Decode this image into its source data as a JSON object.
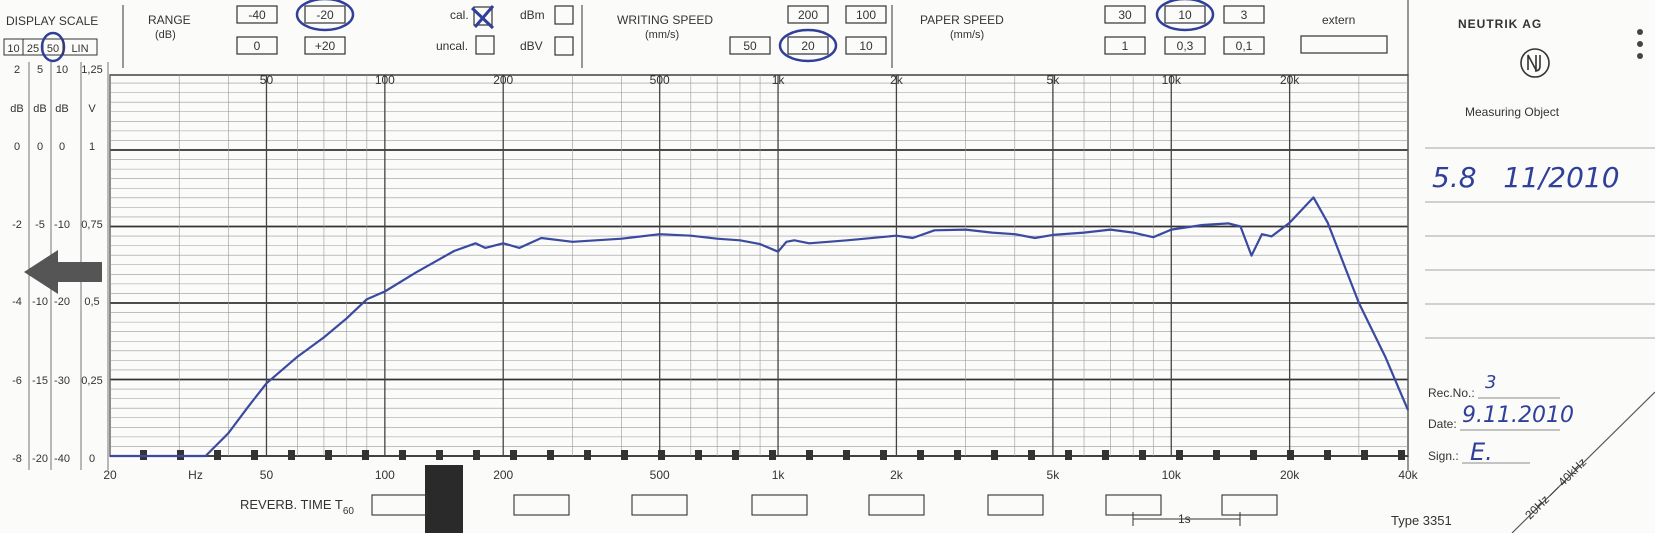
{
  "header": {
    "display_scale": {
      "label": "DISPLAY SCALE",
      "options": [
        "10",
        "25",
        "50",
        "LIN"
      ],
      "selected": "50"
    },
    "range": {
      "label": "RANGE",
      "unit": "(dB)",
      "options_top": [
        "-40",
        "-20"
      ],
      "options_bottom": [
        "0",
        "+20"
      ],
      "selected": "-20",
      "cal_label": "cal.",
      "cal_checked": true,
      "uncal_label": "uncal.",
      "dbm_label": "dBm",
      "dbv_label": "dBV"
    },
    "writing_speed": {
      "label": "WRITING SPEED",
      "unit": "(mm/s)",
      "options_top": [
        "200",
        "100"
      ],
      "options_bottom": [
        "50",
        "20",
        "10"
      ],
      "selected": "20"
    },
    "paper_speed": {
      "label": "PAPER SPEED",
      "unit": "(mm/s)",
      "options_top": [
        "30",
        "10",
        "3"
      ],
      "options_bottom": [
        "1",
        "0,3",
        "0,1"
      ],
      "selected": "10",
      "extern_label": "extern"
    }
  },
  "side_panel": {
    "brand": "NEUTRIK AG",
    "logo_icon": "neutrik-logo-icon",
    "measuring_object_label": "Measuring Object",
    "measuring_object_value": "5.8   11/2010",
    "rec_no_label": "Rec.No.:",
    "rec_no_value": "3",
    "date_label": "Date:",
    "date_value": "9.11.2010",
    "sign_label": "Sign.:",
    "sign_value": "E.",
    "range_corner": "20Hz — 40kHz",
    "type_label": "Type 3351"
  },
  "footer": {
    "reverb_label": "REVERB. TIME T",
    "reverb_sub": "60",
    "time_scale_label": "1s"
  },
  "chart_data": {
    "type": "line",
    "x_scale": "log",
    "xlim": [
      20,
      40000
    ],
    "x_unit_label": "Hz",
    "x_ticks_top": [
      "50",
      "100",
      "200",
      "500",
      "1k",
      "2k",
      "5k",
      "10k",
      "20k"
    ],
    "x_ticks_bottom": [
      "20",
      "50",
      "100",
      "200",
      "500",
      "1k",
      "2k",
      "5k",
      "10k",
      "20k",
      "40k"
    ],
    "y_scale_columns": [
      {
        "unit": "dB",
        "ticks": [
          "2",
          "0",
          "-2",
          "-4",
          "-6",
          "-8"
        ]
      },
      {
        "unit": "dB",
        "ticks": [
          "5",
          "0",
          "-5",
          "-10",
          "-15",
          "-20"
        ]
      },
      {
        "unit": "dB",
        "ticks": [
          "10",
          "0",
          "-10",
          "-20",
          "-30",
          "-40"
        ]
      },
      {
        "unit": "V",
        "ticks": [
          "1,25",
          "1",
          "0,75",
          "0,5",
          "0,25",
          "0"
        ]
      }
    ],
    "y_selected_scale": "50 dB",
    "ylim": [
      -40,
      10
    ],
    "series": [
      {
        "x": [
          20,
          35,
          40,
          45,
          50,
          60,
          70,
          80,
          90,
          100,
          120,
          150,
          170,
          180,
          190,
          200,
          220,
          250,
          300,
          400,
          500,
          600,
          700,
          800,
          900,
          1000,
          1050,
          1100,
          1200,
          1500,
          2000,
          2200,
          2500,
          3000,
          3500,
          4000,
          4500,
          5000,
          6000,
          7000,
          8000,
          9000,
          10000,
          12000,
          14000,
          15000,
          16000,
          17000,
          18000,
          20000,
          23000,
          25000,
          30000,
          35000,
          40000
        ],
        "y": [
          -40,
          -40,
          -37,
          -33.5,
          -30.5,
          -27,
          -24.5,
          -22,
          -19.5,
          -18.5,
          -16,
          -13.2,
          -12.2,
          -12.8,
          -12.5,
          -12.2,
          -12.8,
          -11.5,
          -12,
          -11.6,
          -11,
          -11.2,
          -11.6,
          -11.8,
          -12.3,
          -13.3,
          -12,
          -11.8,
          -12.2,
          -11.8,
          -11.2,
          -11.5,
          -10.5,
          -10.4,
          -10.8,
          -11,
          -11.5,
          -11.1,
          -10.8,
          -10.4,
          -10.8,
          -11.4,
          -10.4,
          -9.8,
          -9.6,
          -10,
          -13.8,
          -11,
          -11.3,
          -9.5,
          -6.2,
          -9.5,
          -20,
          -27,
          -34
        ]
      }
    ]
  }
}
